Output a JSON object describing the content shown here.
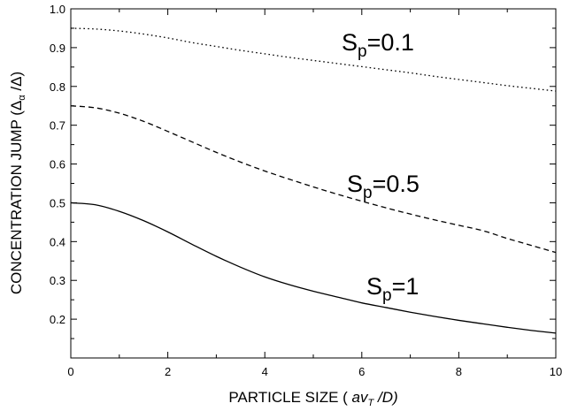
{
  "chart_data": {
    "type": "line",
    "xlabel": {
      "prefix": "PARTICLE SIZE (  ",
      "var": "av",
      "sub": "T",
      "suffix": " /D)"
    },
    "ylabel": {
      "prefix": "CONCENTRATION JUMP  (",
      "var": "Δ",
      "sub": "α",
      "suffix": " /Δ)"
    },
    "xlim": [
      0,
      10
    ],
    "ylim": [
      0.1,
      1.0
    ],
    "x_ticks": [
      0,
      2,
      4,
      6,
      8,
      10
    ],
    "y_ticks": [
      0.2,
      0.3,
      0.4,
      0.5,
      0.6,
      0.7,
      0.8,
      0.9,
      1.0
    ],
    "x_tick_labels": [
      "0",
      "2",
      "4",
      "6",
      "8",
      "10"
    ],
    "y_tick_labels": [
      "0.2",
      "0.3",
      "0.4",
      "0.5",
      "0.6",
      "0.7",
      "0.8",
      "0.9",
      "1.0"
    ],
    "grid": false,
    "series": [
      {
        "label": {
          "main": "S",
          "sub": "p",
          "rest": "=0.1"
        },
        "dash": "dotted",
        "color": "#000000",
        "x": [
          0,
          0.5,
          1,
          1.5,
          2,
          2.5,
          3,
          3.5,
          4,
          4.5,
          5,
          5.5,
          6,
          6.5,
          7,
          7.5,
          8,
          8.5,
          9,
          9.5,
          10
        ],
        "y": [
          0.95,
          0.948,
          0.943,
          0.935,
          0.925,
          0.913,
          0.903,
          0.893,
          0.884,
          0.875,
          0.867,
          0.859,
          0.851,
          0.843,
          0.835,
          0.826,
          0.818,
          0.81,
          0.802,
          0.795,
          0.788
        ]
      },
      {
        "label": {
          "main": "S",
          "sub": "p",
          "rest": "=0.5"
        },
        "dash": "dashed",
        "color": "#000000",
        "x": [
          0,
          0.5,
          1,
          1.5,
          2,
          2.5,
          3,
          3.5,
          4,
          4.5,
          5,
          5.5,
          6,
          6.5,
          7,
          7.5,
          8,
          8.5,
          9,
          9.5,
          10
        ],
        "y": [
          0.75,
          0.745,
          0.731,
          0.71,
          0.684,
          0.657,
          0.63,
          0.605,
          0.582,
          0.561,
          0.541,
          0.522,
          0.504,
          0.487,
          0.471,
          0.456,
          0.442,
          0.428,
          0.408,
          0.39,
          0.372
        ]
      },
      {
        "label": {
          "main": "S",
          "sub": "p",
          "rest": "=1"
        },
        "dash": "solid",
        "color": "#000000",
        "x": [
          0,
          0.5,
          1,
          1.5,
          2,
          2.5,
          3,
          3.5,
          4,
          4.5,
          5,
          5.5,
          6,
          6.5,
          7,
          7.5,
          8,
          8.5,
          9,
          9.5,
          10
        ],
        "y": [
          0.5,
          0.495,
          0.478,
          0.454,
          0.425,
          0.393,
          0.362,
          0.334,
          0.309,
          0.289,
          0.272,
          0.257,
          0.242,
          0.23,
          0.218,
          0.207,
          0.197,
          0.188,
          0.179,
          0.171,
          0.164
        ]
      }
    ]
  }
}
